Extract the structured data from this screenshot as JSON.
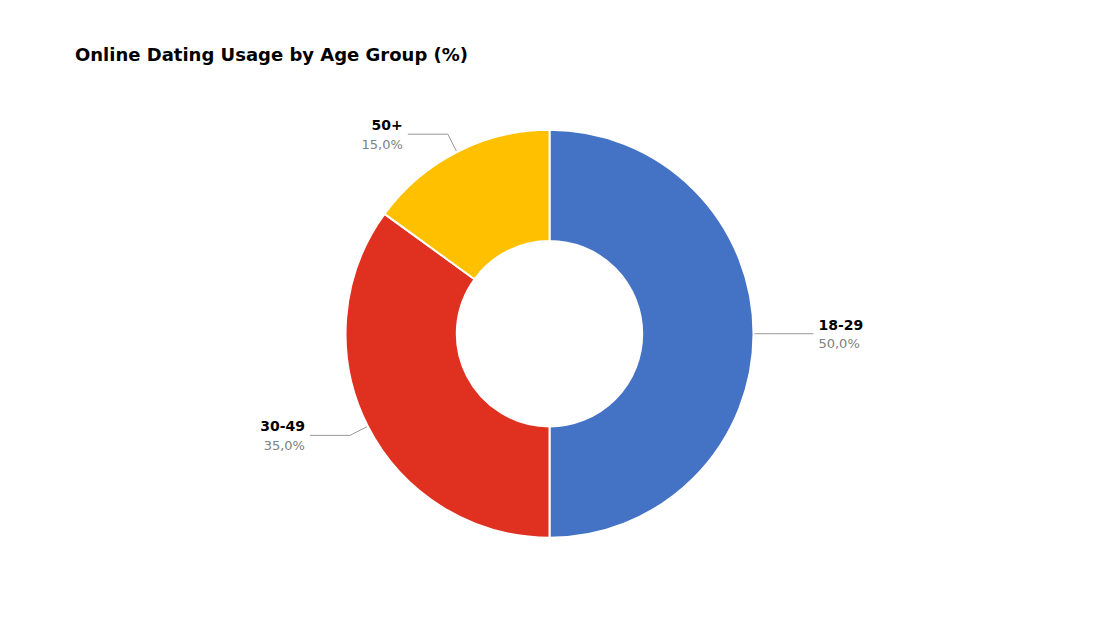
{
  "chart_data": {
    "type": "pie",
    "title": "Online Dating Usage by Age Group (%)",
    "categories": [
      "18-29",
      "30-49",
      "50+"
    ],
    "values": [
      50.0,
      35.0,
      15.0
    ],
    "value_labels": [
      "50,0%",
      "35,0%",
      "15,0%"
    ],
    "colors": [
      "#4472C4",
      "#E03020",
      "#FFC000"
    ],
    "data_labels": true
  }
}
